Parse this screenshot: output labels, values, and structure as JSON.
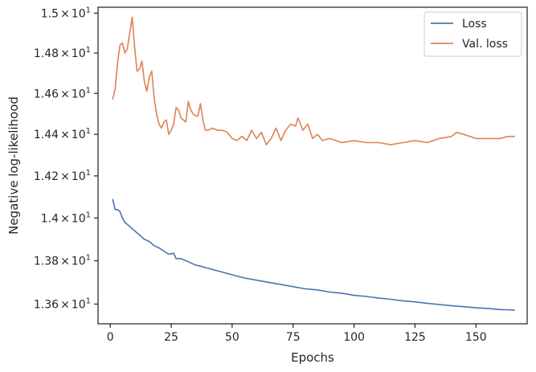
{
  "chart_data": {
    "type": "line",
    "xlabel": "Epochs",
    "ylabel": "Negative log-likelihood",
    "xlim": [
      -5,
      171
    ],
    "ylim": [
      13.51,
      15.03
    ],
    "x_ticks": [
      0,
      25,
      50,
      75,
      100,
      125,
      150
    ],
    "y_ticks": [
      {
        "value": 13.6,
        "mantissa": "1.36",
        "base": "10",
        "exponent": "1"
      },
      {
        "value": 13.8,
        "mantissa": "1.38",
        "base": "10",
        "exponent": "1"
      },
      {
        "value": 14.0,
        "mantissa": "1.4",
        "base": "10",
        "exponent": "1"
      },
      {
        "value": 14.2,
        "mantissa": "1.42",
        "base": "10",
        "exponent": "1"
      },
      {
        "value": 14.4,
        "mantissa": "1.44",
        "base": "10",
        "exponent": "1"
      },
      {
        "value": 14.6,
        "mantissa": "1.46",
        "base": "10",
        "exponent": "1"
      },
      {
        "value": 14.8,
        "mantissa": "1.48",
        "base": "10",
        "exponent": "1"
      },
      {
        "value": 15.0,
        "mantissa": "1.5",
        "base": "10",
        "exponent": "1"
      }
    ],
    "times_symbol": "×",
    "log_scale_y": true,
    "grid": false,
    "legend_position": "top-right",
    "series": [
      {
        "name": "Loss",
        "color": "#4c72b0",
        "points": [
          [
            1,
            14.09
          ],
          [
            2,
            14.04
          ],
          [
            3,
            14.04
          ],
          [
            4,
            14.03
          ],
          [
            5,
            14.0
          ],
          [
            6,
            13.98
          ],
          [
            7,
            13.97
          ],
          [
            8,
            13.96
          ],
          [
            9,
            13.95
          ],
          [
            10,
            13.94
          ],
          [
            12,
            13.92
          ],
          [
            14,
            13.9
          ],
          [
            16,
            13.89
          ],
          [
            18,
            13.87
          ],
          [
            20,
            13.86
          ],
          [
            22,
            13.845
          ],
          [
            24,
            13.83
          ],
          [
            26,
            13.835
          ],
          [
            27,
            13.81
          ],
          [
            29,
            13.81
          ],
          [
            31,
            13.8
          ],
          [
            33,
            13.79
          ],
          [
            35,
            13.78
          ],
          [
            37,
            13.775
          ],
          [
            40,
            13.765
          ],
          [
            45,
            13.75
          ],
          [
            50,
            13.735
          ],
          [
            55,
            13.72
          ],
          [
            60,
            13.71
          ],
          [
            65,
            13.7
          ],
          [
            70,
            13.69
          ],
          [
            75,
            13.68
          ],
          [
            80,
            13.67
          ],
          [
            85,
            13.665
          ],
          [
            90,
            13.655
          ],
          [
            95,
            13.65
          ],
          [
            100,
            13.64
          ],
          [
            105,
            13.635
          ],
          [
            110,
            13.628
          ],
          [
            115,
            13.622
          ],
          [
            120,
            13.615
          ],
          [
            125,
            13.61
          ],
          [
            130,
            13.603
          ],
          [
            135,
            13.598
          ],
          [
            140,
            13.592
          ],
          [
            145,
            13.588
          ],
          [
            150,
            13.583
          ],
          [
            155,
            13.58
          ],
          [
            160,
            13.575
          ],
          [
            165,
            13.573
          ],
          [
            166,
            13.572
          ]
        ]
      },
      {
        "name": "Val. loss",
        "color": "#dd8452",
        "points": [
          [
            1,
            14.57
          ],
          [
            2,
            14.62
          ],
          [
            3,
            14.75
          ],
          [
            4,
            14.84
          ],
          [
            5,
            14.85
          ],
          [
            6,
            14.8
          ],
          [
            7,
            14.82
          ],
          [
            8,
            14.9
          ],
          [
            9,
            14.98
          ],
          [
            10,
            14.83
          ],
          [
            11,
            14.71
          ],
          [
            12,
            14.72
          ],
          [
            13,
            14.76
          ],
          [
            14,
            14.66
          ],
          [
            15,
            14.61
          ],
          [
            16,
            14.68
          ],
          [
            17,
            14.71
          ],
          [
            18,
            14.58
          ],
          [
            19,
            14.5
          ],
          [
            20,
            14.45
          ],
          [
            21,
            14.43
          ],
          [
            22,
            14.46
          ],
          [
            23,
            14.47
          ],
          [
            24,
            14.4
          ],
          [
            25,
            14.42
          ],
          [
            26,
            14.45
          ],
          [
            27,
            14.53
          ],
          [
            28,
            14.52
          ],
          [
            29,
            14.48
          ],
          [
            30,
            14.47
          ],
          [
            31,
            14.46
          ],
          [
            32,
            14.56
          ],
          [
            33,
            14.52
          ],
          [
            34,
            14.5
          ],
          [
            35,
            14.49
          ],
          [
            36,
            14.49
          ],
          [
            37,
            14.55
          ],
          [
            38,
            14.47
          ],
          [
            39,
            14.42
          ],
          [
            40,
            14.42
          ],
          [
            42,
            14.43
          ],
          [
            44,
            14.42
          ],
          [
            46,
            14.42
          ],
          [
            48,
            14.41
          ],
          [
            50,
            14.38
          ],
          [
            52,
            14.37
          ],
          [
            54,
            14.39
          ],
          [
            56,
            14.37
          ],
          [
            58,
            14.42
          ],
          [
            60,
            14.38
          ],
          [
            62,
            14.41
          ],
          [
            64,
            14.35
          ],
          [
            66,
            14.38
          ],
          [
            68,
            14.43
          ],
          [
            70,
            14.37
          ],
          [
            72,
            14.42
          ],
          [
            74,
            14.45
          ],
          [
            76,
            14.44
          ],
          [
            77,
            14.48
          ],
          [
            79,
            14.42
          ],
          [
            81,
            14.45
          ],
          [
            83,
            14.38
          ],
          [
            85,
            14.4
          ],
          [
            87,
            14.37
          ],
          [
            90,
            14.38
          ],
          [
            95,
            14.36
          ],
          [
            100,
            14.37
          ],
          [
            105,
            14.36
          ],
          [
            110,
            14.36
          ],
          [
            115,
            14.35
          ],
          [
            120,
            14.36
          ],
          [
            125,
            14.37
          ],
          [
            130,
            14.36
          ],
          [
            135,
            14.38
          ],
          [
            140,
            14.39
          ],
          [
            142,
            14.41
          ],
          [
            145,
            14.4
          ],
          [
            150,
            14.38
          ],
          [
            155,
            14.38
          ],
          [
            160,
            14.38
          ],
          [
            163,
            14.39
          ],
          [
            166,
            14.39
          ]
        ]
      }
    ]
  }
}
